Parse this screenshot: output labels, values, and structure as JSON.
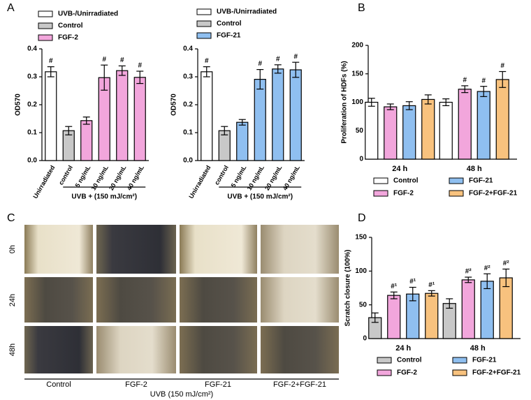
{
  "panel_labels": [
    "A",
    "B",
    "C",
    "D"
  ],
  "chart_data": [
    {
      "type": "bar",
      "y_label": "OD570",
      "group_label": "UVB + (150 mJ/cm²)",
      "legend": "top",
      "categories": [
        "Unirradiated",
        "control",
        "5 ng/mL",
        "10 ng/mL",
        "20 ng/mL",
        "40 ng/mL"
      ],
      "ylim": [
        0,
        0.4
      ],
      "yticks": [
        {
          "value": 0,
          "label": "0.0"
        },
        0.1,
        0.2,
        0.3,
        0.4
      ],
      "series": [
        {
          "name": "UVB-/Unirradiated",
          "color": "#ffffff",
          "values": [
            0.318,
            null,
            null,
            null,
            null,
            null
          ],
          "errors": [
            0.018,
            null,
            null,
            null,
            null,
            null
          ],
          "annotations": [
            "#",
            null,
            null,
            null,
            null,
            null
          ]
        },
        {
          "name": "Control",
          "color": "#c8c8c8",
          "values": [
            null,
            0.107,
            null,
            null,
            null,
            null
          ],
          "errors": [
            null,
            0.015,
            null,
            null,
            null,
            null
          ],
          "annotations": [
            null,
            null,
            null,
            null,
            null,
            null
          ]
        },
        {
          "name": "FGF-2",
          "color": "#f2a6dc",
          "values": [
            null,
            null,
            0.143,
            0.297,
            0.322,
            0.298
          ],
          "errors": [
            null,
            null,
            0.013,
            0.045,
            0.017,
            0.022
          ],
          "annotations": [
            null,
            null,
            null,
            "#",
            "#",
            "#"
          ]
        }
      ]
    },
    {
      "type": "bar",
      "y_label": "OD570",
      "group_label": "UVB + (150 mJ/cm²)",
      "legend": "top",
      "categories": [
        "Unirradiated",
        "control",
        "5 ng/mL",
        "10 ng/mL",
        "20 ng/mL",
        "40 ng/mL"
      ],
      "ylim": [
        0,
        0.4
      ],
      "yticks": [
        {
          "value": 0,
          "label": "0.0"
        },
        0.1,
        0.2,
        0.3,
        0.4
      ],
      "series": [
        {
          "name": "UVB-/Unirradiated",
          "color": "#ffffff",
          "values": [
            0.318,
            null,
            null,
            null,
            null,
            null
          ],
          "errors": [
            0.018,
            null,
            null,
            null,
            null,
            null
          ],
          "annotations": [
            "#",
            null,
            null,
            null,
            null,
            null
          ]
        },
        {
          "name": "Control",
          "color": "#c8c8c8",
          "values": [
            null,
            0.107,
            null,
            null,
            null,
            null
          ],
          "errors": [
            null,
            0.015,
            null,
            null,
            null,
            null
          ],
          "annotations": [
            null,
            null,
            null,
            null,
            null,
            null
          ]
        },
        {
          "name": "FGF-21",
          "color": "#8fbff0",
          "values": [
            null,
            null,
            0.137,
            0.291,
            0.328,
            0.325
          ],
          "errors": [
            null,
            null,
            0.01,
            0.035,
            0.015,
            0.027
          ],
          "annotations": [
            null,
            null,
            null,
            "#",
            "#",
            "#"
          ]
        }
      ]
    },
    {
      "type": "grouped_bar",
      "y_label": "Proliferation of HDFs (%)",
      "legend": "bottom",
      "categories": [
        "24 h",
        "48 h"
      ],
      "ylim": [
        0,
        200
      ],
      "yticks": [
        0,
        50,
        100,
        150,
        200
      ],
      "series": [
        {
          "name": "Control",
          "color": "#ffffff",
          "values": [
            100,
            100
          ],
          "errors": [
            7,
            6
          ],
          "annotations": [
            null,
            null
          ]
        },
        {
          "name": "FGF-2",
          "color": "#f2a6dc",
          "values": [
            92,
            123
          ],
          "errors": [
            5,
            6
          ],
          "annotations": [
            null,
            "#"
          ]
        },
        {
          "name": "FGF-21",
          "color": "#8fbff0",
          "values": [
            94,
            119
          ],
          "errors": [
            7,
            9
          ],
          "annotations": [
            null,
            "#"
          ]
        },
        {
          "name": "FGF-2+FGF-21",
          "color": "#f8c27e",
          "values": [
            105,
            140
          ],
          "errors": [
            8,
            14
          ],
          "annotations": [
            null,
            "#"
          ]
        }
      ]
    },
    {
      "type": "grouped_bar",
      "y_label": "Scratch closure (100%)",
      "legend": "bottom",
      "categories": [
        "24 h",
        "48 h"
      ],
      "ylim": [
        0,
        150
      ],
      "yticks": [
        0,
        50,
        100,
        150
      ],
      "series": [
        {
          "name": "Control",
          "color": "#c8c8c8",
          "values": [
            31,
            52
          ],
          "errors": [
            7,
            7
          ],
          "annotations": [
            null,
            null
          ]
        },
        {
          "name": "FGF-2",
          "color": "#f2a6dc",
          "values": [
            64,
            87
          ],
          "errors": [
            5,
            4
          ],
          "annotations": [
            "#¹",
            "#²"
          ]
        },
        {
          "name": "FGF-21",
          "color": "#8fbff0",
          "values": [
            66,
            85
          ],
          "errors": [
            10,
            11
          ],
          "annotations": [
            "#¹",
            "#²"
          ]
        },
        {
          "name": "FGF-2+FGF-21",
          "color": "#f8c27e",
          "values": [
            67,
            90
          ],
          "errors": [
            4,
            13
          ],
          "annotations": [
            "#¹",
            "#²"
          ]
        }
      ]
    }
  ],
  "scratch_images": {
    "rows": [
      "0h",
      "24h",
      "48h"
    ],
    "columns": [
      "Control",
      "FGF-2",
      "FGF-21",
      "FGF-2+FGF-21"
    ],
    "footer": "UVB (150 mJ/cm²)"
  }
}
